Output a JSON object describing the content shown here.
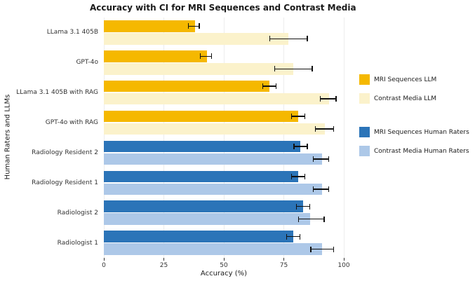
{
  "colors": {
    "mri_llm": "#F5B800",
    "contrast_llm": "#FBF2CB",
    "mri_human": "#2B74B8",
    "contrast_human": "#ADC8E8",
    "error_bar": "#111111"
  },
  "legend": {
    "items": [
      {
        "label": "MRI Sequences LLM",
        "color_key": "mri_llm"
      },
      {
        "label": "Contrast Media LLM",
        "color_key": "contrast_llm"
      },
      {
        "label": "MRI Sequences Human Raters",
        "color_key": "mri_human"
      },
      {
        "label": "Contrast Media Human Raters",
        "color_key": "contrast_human"
      }
    ]
  },
  "chart_data": {
    "type": "bar",
    "orientation": "horizontal",
    "title": "Accuracy with CI for MRI Sequences and Contrast Media",
    "xlabel": "Accuracy (%)",
    "ylabel": "Human Raters and LLMs",
    "xlim": [
      0,
      100
    ],
    "xticks": [
      0,
      25,
      50,
      75,
      100
    ],
    "grid": true,
    "legend_position": "right",
    "categories": [
      "LLama 3.1 405B",
      "GPT-4o",
      "LLama 3.1 405B with RAG",
      "GPT-4o with RAG",
      "Radiology Resident 2",
      "Radiology Resident 1",
      "Radiologist 2",
      "Radiologist 1"
    ],
    "row_groups": [
      "llm",
      "llm",
      "llm",
      "llm",
      "human",
      "human",
      "human",
      "human"
    ],
    "series": [
      {
        "name": "MRI Sequences",
        "color_keys": {
          "llm": "mri_llm",
          "human": "mri_human"
        },
        "values": [
          38,
          43,
          69,
          81,
          82,
          81,
          83,
          79
        ],
        "ci_low": [
          35,
          40,
          66,
          78,
          79,
          78,
          80,
          76
        ],
        "ci_high": [
          40,
          45,
          72,
          84,
          85,
          84,
          86,
          82
        ]
      },
      {
        "name": "Contrast Media",
        "color_keys": {
          "llm": "contrast_llm",
          "human": "contrast_human"
        },
        "values": [
          77,
          79,
          94,
          92,
          91,
          91,
          86,
          91
        ],
        "ci_low": [
          69,
          71,
          90,
          88,
          87,
          87,
          81,
          86
        ],
        "ci_high": [
          85,
          87,
          97,
          96,
          94,
          94,
          92,
          96
        ]
      }
    ]
  }
}
